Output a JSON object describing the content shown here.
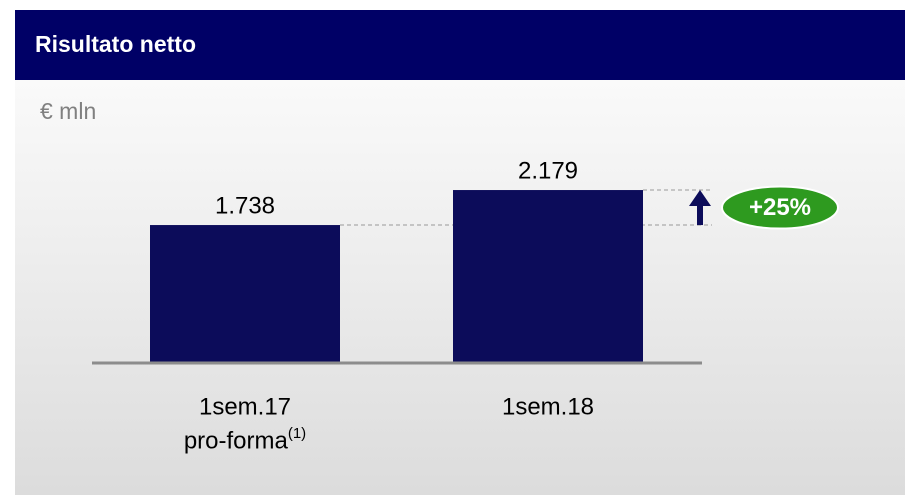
{
  "chart_data": {
    "type": "bar",
    "title": "Risultato netto",
    "subtitle": "€ mln",
    "categories": [
      [
        "1sem.17",
        "pro-forma"
      ],
      [
        "1sem.18"
      ]
    ],
    "category_notes": [
      "(1)",
      null
    ],
    "values": [
      1738,
      2179
    ],
    "value_labels": [
      "1.738",
      "2.179"
    ],
    "color": "#0c0c5a",
    "ylim": [
      0,
      2400
    ],
    "annotation": "+25%",
    "annotation_color": "#2e9a1f"
  }
}
